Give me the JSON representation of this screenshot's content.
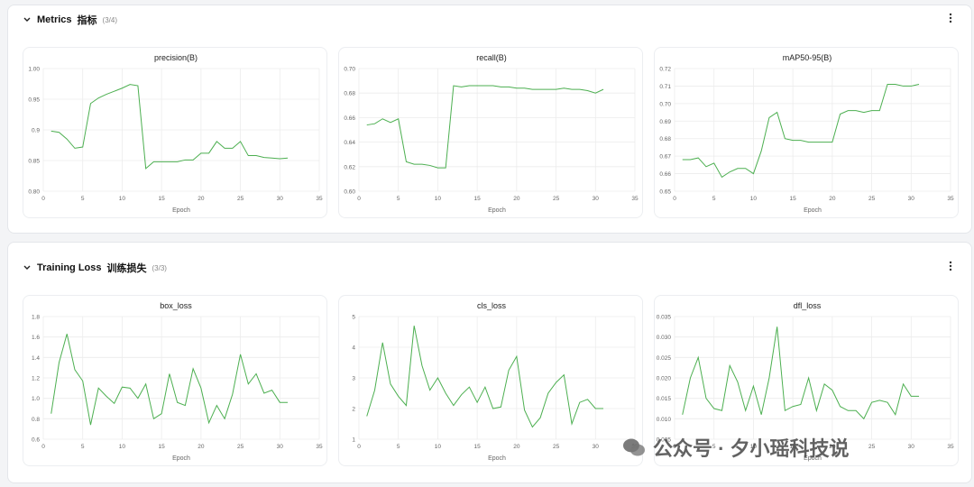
{
  "sections": [
    {
      "title": "Metrics",
      "subtitle": "指标",
      "count": "(3/4)",
      "charts": [
        {
          "type": "line",
          "title": "precision(B)",
          "xlabel": "Epoch",
          "color": "#4caf50",
          "x": [
            1,
            2,
            3,
            4,
            5,
            6,
            7,
            8,
            9,
            10,
            11,
            12,
            13,
            14,
            15,
            16,
            17,
            18,
            19,
            20,
            21,
            22,
            23,
            24,
            25,
            26,
            27,
            28,
            29,
            30,
            31
          ],
          "values": [
            0.898,
            0.896,
            0.885,
            0.87,
            0.872,
            0.943,
            0.952,
            0.958,
            0.963,
            0.968,
            0.974,
            0.972,
            0.837,
            0.848,
            0.848,
            0.848,
            0.848,
            0.851,
            0.851,
            0.862,
            0.862,
            0.881,
            0.87,
            0.87,
            0.881,
            0.858,
            0.858,
            0.855,
            0.854,
            0.853,
            0.854
          ],
          "xlim": [
            0,
            35
          ],
          "xticks": [
            0,
            5,
            10,
            15,
            20,
            25,
            30,
            35
          ],
          "ylim": [
            0.8,
            1.0
          ],
          "yticks": [
            {
              "value": 0.8,
              "label": "0.80"
            },
            0.85,
            0.9,
            0.95,
            {
              "value": 1.0,
              "label": "1.00"
            }
          ]
        },
        {
          "type": "line",
          "title": "recall(B)",
          "xlabel": "Epoch",
          "color": "#4caf50",
          "x": [
            1,
            2,
            3,
            4,
            5,
            6,
            7,
            8,
            9,
            10,
            11,
            12,
            13,
            14,
            15,
            16,
            17,
            18,
            19,
            20,
            21,
            22,
            23,
            24,
            25,
            26,
            27,
            28,
            29,
            30,
            31
          ],
          "values": [
            0.654,
            0.655,
            0.659,
            0.656,
            0.659,
            0.624,
            0.622,
            0.622,
            0.621,
            0.619,
            0.619,
            0.686,
            0.685,
            0.686,
            0.686,
            0.686,
            0.686,
            0.685,
            0.685,
            0.684,
            0.684,
            0.683,
            0.683,
            0.683,
            0.683,
            0.684,
            0.683,
            0.683,
            0.682,
            0.68,
            0.683
          ],
          "xlim": [
            0,
            35
          ],
          "xticks": [
            0,
            5,
            10,
            15,
            20,
            25,
            30,
            35
          ],
          "ylim": [
            0.6,
            0.7
          ],
          "yticks": [
            {
              "value": 0.6,
              "label": "0.60"
            },
            0.62,
            0.64,
            0.66,
            0.68,
            {
              "value": 0.7,
              "label": "0.70"
            }
          ]
        },
        {
          "type": "line",
          "title": "mAP50-95(B)",
          "xlabel": "Epoch",
          "color": "#4caf50",
          "x": [
            1,
            2,
            3,
            4,
            5,
            6,
            7,
            8,
            9,
            10,
            11,
            12,
            13,
            14,
            15,
            16,
            17,
            18,
            19,
            20,
            21,
            22,
            23,
            24,
            25,
            26,
            27,
            28,
            29,
            30,
            31
          ],
          "values": [
            0.668,
            0.668,
            0.669,
            0.664,
            0.666,
            0.658,
            0.661,
            0.663,
            0.663,
            0.66,
            0.673,
            0.692,
            0.695,
            0.68,
            0.679,
            0.679,
            0.678,
            0.678,
            0.678,
            0.678,
            0.694,
            0.696,
            0.696,
            0.695,
            0.696,
            0.696,
            0.711,
            0.711,
            0.71,
            0.71,
            0.711
          ],
          "xlim": [
            0,
            35
          ],
          "xticks": [
            0,
            5,
            10,
            15,
            20,
            25,
            30,
            35
          ],
          "ylim": [
            0.65,
            0.72
          ],
          "yticks": [
            0.65,
            0.66,
            0.67,
            0.68,
            0.69,
            {
              "value": 0.7,
              "label": "0.70"
            },
            0.71,
            0.72
          ]
        }
      ]
    },
    {
      "title": "Training Loss",
      "subtitle": "训练损失",
      "count": "(3/3)",
      "charts": [
        {
          "type": "line",
          "title": "box_loss",
          "xlabel": "Epoch",
          "color": "#4caf50",
          "x": [
            1,
            2,
            3,
            4,
            5,
            6,
            7,
            8,
            9,
            10,
            11,
            12,
            13,
            14,
            15,
            16,
            17,
            18,
            19,
            20,
            21,
            22,
            23,
            24,
            25,
            26,
            27,
            28,
            29,
            30,
            31
          ],
          "values": [
            0.85,
            1.35,
            1.63,
            1.28,
            1.17,
            0.74,
            1.1,
            1.02,
            0.95,
            1.11,
            1.1,
            1.0,
            1.14,
            0.8,
            0.85,
            1.24,
            0.96,
            0.93,
            1.29,
            1.1,
            0.76,
            0.93,
            0.8,
            1.04,
            1.43,
            1.14,
            1.24,
            1.05,
            1.08,
            0.96,
            0.96
          ],
          "xlim": [
            0,
            35
          ],
          "xticks": [
            0,
            5,
            10,
            15,
            20,
            25,
            30,
            35
          ],
          "ylim": [
            0.6,
            1.8
          ],
          "yticks": [
            0.6,
            0.8,
            {
              "value": 1.0,
              "label": "1.0"
            },
            1.2,
            1.4,
            1.6,
            1.8
          ]
        },
        {
          "type": "line",
          "title": "cls_loss",
          "xlabel": "Epoch",
          "color": "#4caf50",
          "x": [
            1,
            2,
            3,
            4,
            5,
            6,
            7,
            8,
            9,
            10,
            11,
            12,
            13,
            14,
            15,
            16,
            17,
            18,
            19,
            20,
            21,
            22,
            23,
            24,
            25,
            26,
            27,
            28,
            29,
            30,
            31
          ],
          "values": [
            1.75,
            2.6,
            4.15,
            2.8,
            2.4,
            2.1,
            4.7,
            3.4,
            2.6,
            3.0,
            2.5,
            2.1,
            2.45,
            2.7,
            2.2,
            2.7,
            2.0,
            2.05,
            3.25,
            3.7,
            1.95,
            1.4,
            1.7,
            2.5,
            2.85,
            3.1,
            1.5,
            2.2,
            2.3,
            2.0,
            2.0
          ],
          "xlim": [
            0,
            35
          ],
          "xticks": [
            0,
            5,
            10,
            15,
            20,
            25,
            30,
            35
          ],
          "ylim": [
            1,
            5
          ],
          "yticks": [
            1,
            2,
            3,
            4,
            5
          ]
        },
        {
          "type": "line",
          "title": "dfl_loss",
          "xlabel": "Epoch",
          "color": "#4caf50",
          "x": [
            1,
            2,
            3,
            4,
            5,
            6,
            7,
            8,
            9,
            10,
            11,
            12,
            13,
            14,
            15,
            16,
            17,
            18,
            19,
            20,
            21,
            22,
            23,
            24,
            25,
            26,
            27,
            28,
            29,
            30,
            31
          ],
          "values": [
            0.011,
            0.02,
            0.025,
            0.015,
            0.0125,
            0.012,
            0.023,
            0.019,
            0.012,
            0.018,
            0.011,
            0.02,
            0.0325,
            0.012,
            0.013,
            0.0135,
            0.02,
            0.012,
            0.0185,
            0.017,
            0.013,
            0.012,
            0.012,
            0.01,
            0.014,
            0.0145,
            0.014,
            0.011,
            0.0185,
            0.0155,
            0.0155
          ],
          "xlim": [
            0,
            35
          ],
          "xticks": [
            0,
            5,
            10,
            15,
            20,
            25,
            30,
            35
          ],
          "ylim": [
            0.005,
            0.035
          ],
          "yticks": [
            0.005,
            {
              "value": 0.01,
              "label": "0.010"
            },
            0.015,
            {
              "value": 0.02,
              "label": "0.020"
            },
            0.025,
            {
              "value": 0.03,
              "label": "0.030"
            },
            0.035
          ]
        }
      ]
    }
  ],
  "watermark": "公众号 · 夕小瑶科技说"
}
